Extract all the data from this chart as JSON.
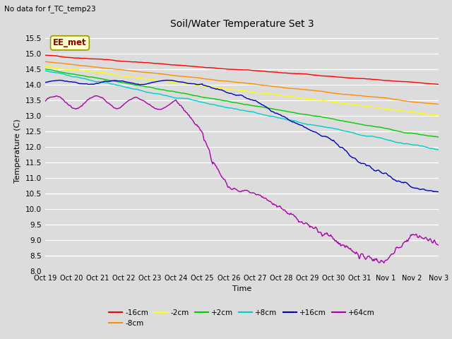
{
  "title": "Soil/Water Temperature Set 3",
  "xlabel": "Time",
  "ylabel": "Temperature (C)",
  "top_left_text": "No data for f_TC_temp23",
  "annotation_text": "EE_met",
  "ylim": [
    8.0,
    15.75
  ],
  "yticks": [
    8.0,
    8.5,
    9.0,
    9.5,
    10.0,
    10.5,
    11.0,
    11.5,
    12.0,
    12.5,
    13.0,
    13.5,
    14.0,
    14.5,
    15.0,
    15.5
  ],
  "xtick_labels": [
    "Oct 19",
    "Oct 20",
    "Oct 21",
    "Oct 22",
    "Oct 23",
    "Oct 24",
    "Oct 25",
    "Oct 26",
    "Oct 27",
    "Oct 28",
    "Oct 29",
    "Oct 30",
    "Oct 31",
    "Nov 1",
    "Nov 2",
    "Nov 3"
  ],
  "series": [
    {
      "label": "-16cm",
      "color": "#FF0000"
    },
    {
      "label": "-8cm",
      "color": "#FF8C00"
    },
    {
      "label": "-2cm",
      "color": "#FFFF00"
    },
    {
      "label": "+2cm",
      "color": "#00CC00"
    },
    {
      "label": "+8cm",
      "color": "#00CCCC"
    },
    {
      "label": "+16cm",
      "color": "#0000BB"
    },
    {
      "label": "+64cm",
      "color": "#AA00AA"
    }
  ],
  "bg_color": "#DCDCDC",
  "plot_bg_color": "#DCDCDC"
}
